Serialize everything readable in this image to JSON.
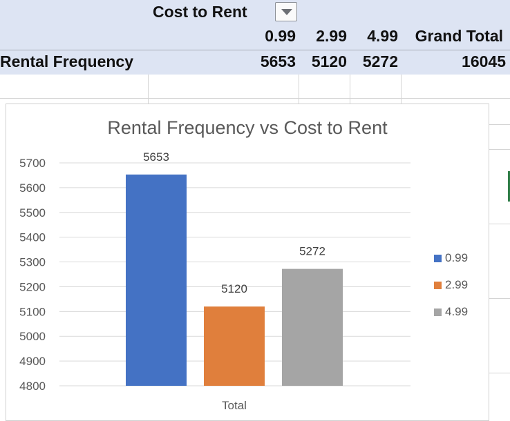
{
  "pivot": {
    "column_field": "Cost to Rent",
    "row_field": "Rental Frequency",
    "columns": [
      "0.99",
      "2.99",
      "4.99",
      "Grand Total"
    ],
    "values": [
      "5653",
      "5120",
      "5272",
      "16045"
    ]
  },
  "chart_data": {
    "type": "bar",
    "title": "Rental Frequency vs Cost to Rent",
    "categories": [
      "Total"
    ],
    "series": [
      {
        "name": "0.99",
        "values": [
          5653
        ],
        "color": "#4472c4"
      },
      {
        "name": "2.99",
        "values": [
          5120
        ],
        "color": "#e07f3c"
      },
      {
        "name": "4.99",
        "values": [
          5272
        ],
        "color": "#a5a5a5"
      }
    ],
    "ylim": [
      4800,
      5700
    ],
    "yticks": [
      4800,
      4900,
      5000,
      5100,
      5200,
      5300,
      5400,
      5500,
      5600,
      5700
    ],
    "grid": true,
    "data_labels": true,
    "legend_position": "right"
  }
}
